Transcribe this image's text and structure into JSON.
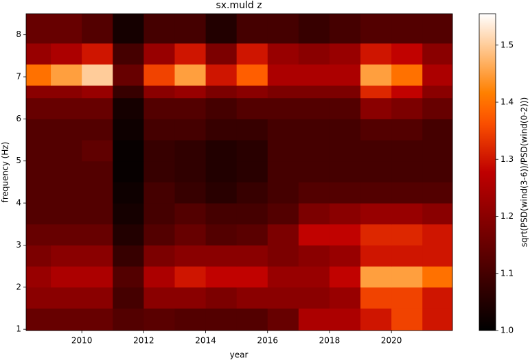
{
  "chart_data": {
    "type": "heatmap",
    "title": "sx.muld z",
    "x_label": "year",
    "y_label": "frequency (Hz)",
    "colorbar_label": "sqrt(PSD(wind(3-6))/PSD(wind(0-2)))",
    "colormap": "gist_heat",
    "x_bins": [
      2008.2,
      2009,
      2010,
      2011,
      2012,
      2013,
      2014,
      2015,
      2016,
      2017,
      2018,
      2019,
      2020,
      2021,
      2021.97
    ],
    "y_bins": [
      0.97,
      1.5,
      2,
      2.5,
      3,
      3.5,
      4,
      4.5,
      5,
      5.5,
      6,
      6.5,
      6.8,
      7.3,
      7.8,
      8.5
    ],
    "z": [
      [
        1.15,
        1.15,
        1.15,
        1.12,
        1.13,
        1.12,
        1.12,
        1.12,
        1.15,
        1.25,
        1.25,
        1.3,
        1.35,
        1.3
      ],
      [
        1.2,
        1.2,
        1.2,
        1.1,
        1.2,
        1.2,
        1.18,
        1.2,
        1.2,
        1.2,
        1.22,
        1.35,
        1.35,
        1.3
      ],
      [
        1.22,
        1.25,
        1.25,
        1.12,
        1.25,
        1.3,
        1.28,
        1.28,
        1.22,
        1.22,
        1.28,
        1.45,
        1.45,
        1.4
      ],
      [
        1.18,
        1.2,
        1.2,
        1.08,
        1.18,
        1.2,
        1.2,
        1.2,
        1.18,
        1.2,
        1.22,
        1.3,
        1.3,
        1.3
      ],
      [
        1.15,
        1.15,
        1.15,
        1.05,
        1.12,
        1.15,
        1.12,
        1.13,
        1.18,
        1.28,
        1.28,
        1.32,
        1.32,
        1.3
      ],
      [
        1.12,
        1.12,
        1.12,
        1.03,
        1.1,
        1.12,
        1.1,
        1.1,
        1.12,
        1.18,
        1.2,
        1.22,
        1.22,
        1.2
      ],
      [
        1.12,
        1.12,
        1.12,
        1.02,
        1.1,
        1.08,
        1.06,
        1.08,
        1.1,
        1.12,
        1.12,
        1.12,
        1.12,
        1.12
      ],
      [
        1.12,
        1.12,
        1.12,
        1.01,
        1.08,
        1.07,
        1.05,
        1.06,
        1.1,
        1.1,
        1.1,
        1.1,
        1.1,
        1.1
      ],
      [
        1.12,
        1.12,
        1.14,
        1.01,
        1.08,
        1.07,
        1.05,
        1.06,
        1.1,
        1.1,
        1.1,
        1.1,
        1.1,
        1.1
      ],
      [
        1.12,
        1.12,
        1.12,
        1.02,
        1.1,
        1.1,
        1.08,
        1.08,
        1.1,
        1.1,
        1.1,
        1.12,
        1.12,
        1.1
      ],
      [
        1.15,
        1.15,
        1.15,
        1.03,
        1.12,
        1.12,
        1.1,
        1.12,
        1.12,
        1.12,
        1.12,
        1.2,
        1.18,
        1.15
      ],
      [
        1.2,
        1.2,
        1.22,
        1.08,
        1.2,
        1.22,
        1.18,
        1.2,
        1.18,
        1.18,
        1.18,
        1.32,
        1.28,
        1.2
      ],
      [
        1.4,
        1.45,
        1.5,
        1.15,
        1.35,
        1.45,
        1.3,
        1.38,
        1.25,
        1.25,
        1.25,
        1.45,
        1.4,
        1.25
      ],
      [
        1.22,
        1.25,
        1.3,
        1.1,
        1.22,
        1.3,
        1.18,
        1.3,
        1.22,
        1.2,
        1.22,
        1.3,
        1.28,
        1.2
      ],
      [
        1.15,
        1.15,
        1.12,
        1.03,
        1.1,
        1.1,
        1.05,
        1.1,
        1.1,
        1.08,
        1.1,
        1.12,
        1.12,
        1.12
      ]
    ],
    "xlim": [
      2008.2,
      2021.97
    ],
    "ylim": [
      0.97,
      8.5
    ],
    "xticks": [
      2010,
      2012,
      2014,
      2016,
      2018,
      2020
    ],
    "yticks": [
      1,
      2,
      3,
      4,
      5,
      6,
      7,
      8
    ],
    "clim": [
      1.0,
      1.555
    ],
    "cticks": [
      {
        "value": 1.0,
        "label": "1.0"
      },
      {
        "value": 1.1,
        "label": "1.1"
      },
      {
        "value": 1.2,
        "label": "1.2"
      },
      {
        "value": 1.3,
        "label": "1.3"
      },
      {
        "value": 1.4,
        "label": "1.4"
      },
      {
        "value": 1.5,
        "label": "1.5"
      }
    ]
  }
}
